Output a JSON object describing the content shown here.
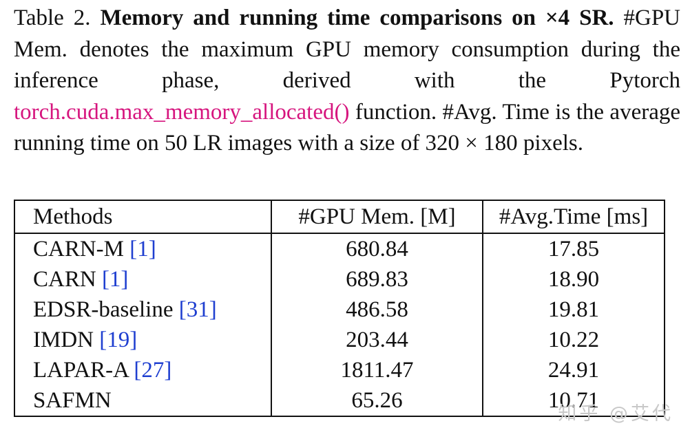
{
  "caption": {
    "table_label": "Table 2.",
    "bold_title": "Memory and running time comparisons on ×4 SR.",
    "part1": "#GPU Mem. denotes the maximum GPU memory consumption during the inference phase, derived with the Pytorch",
    "code": "torch.cuda.max_memory_allocated()",
    "part2": "function. #Avg. Time is the average running time on 50 LR images with a size of 320 × 180 pixels."
  },
  "table": {
    "headers": [
      "Methods",
      "#GPU Mem. [M]",
      "#Avg.Time [ms]"
    ],
    "rows": [
      {
        "method": "CARN-M",
        "ref": "[1]",
        "mem": "680.84",
        "time": "17.85"
      },
      {
        "method": "CARN",
        "ref": "[1]",
        "mem": "689.83",
        "time": "18.90"
      },
      {
        "method": "EDSR-baseline",
        "ref": "[31]",
        "mem": "486.58",
        "time": "19.81"
      },
      {
        "method": "IMDN",
        "ref": "[19]",
        "mem": "203.44",
        "time": "10.22"
      },
      {
        "method": "LAPAR-A",
        "ref": "[27]",
        "mem": "1811.47",
        "time": "24.91"
      },
      {
        "method": "SAFMN",
        "ref": "",
        "mem": "65.26",
        "time": "10.71"
      }
    ]
  },
  "watermark": "知乎 @艾代"
}
